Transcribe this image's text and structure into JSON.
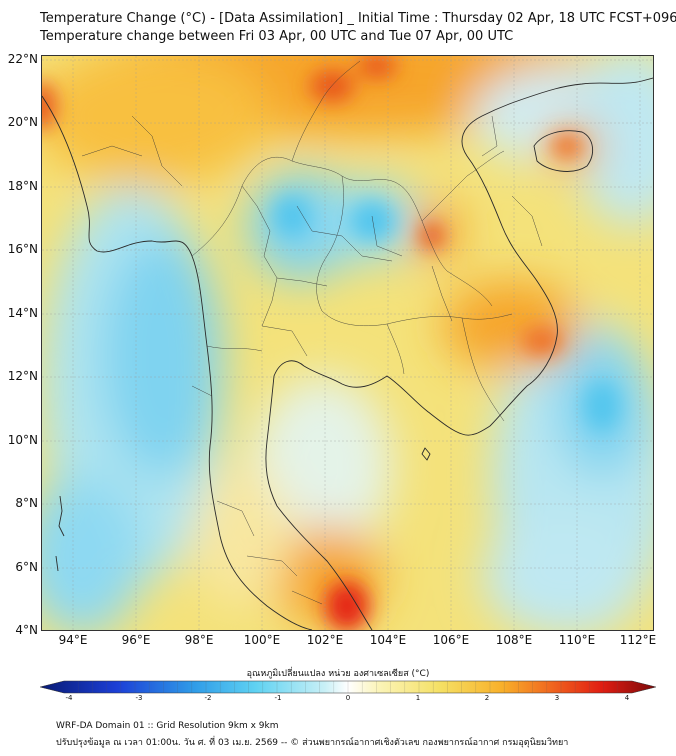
{
  "title": {
    "line1": "Temperature Change (°C) - [Data Assimilation] _ Initial Time : Thursday 02 Apr, 18 UTC FCST+096",
    "line2": "Temperature change between Fri 03 Apr, 00 UTC and Tue 07 Apr, 00 UTC"
  },
  "axes": {
    "lat_ticks": [
      "22°N",
      "20°N",
      "18°N",
      "16°N",
      "14°N",
      "12°N",
      "10°N",
      "8°N",
      "6°N",
      "4°N"
    ],
    "lon_ticks": [
      "94°E",
      "96°E",
      "98°E",
      "100°E",
      "102°E",
      "104°E",
      "106°E",
      "108°E",
      "110°E",
      "112°E"
    ],
    "lat_range": [
      4,
      22.2
    ],
    "lon_range": [
      93,
      112.5
    ]
  },
  "colorbar": {
    "title": "อุณหภูมิเปลี่ยนแปลง หน่วย องศาเซลเซียส (°C)",
    "range": [
      -4,
      4
    ],
    "tick_labels": [
      "-4",
      "-3",
      "-2",
      "-1",
      "0",
      "1",
      "2",
      "3",
      "4"
    ],
    "stops": [
      {
        "value": -4,
        "color": "#081a73"
      },
      {
        "value": -3,
        "color": "#1c3fd6"
      },
      {
        "value": -2,
        "color": "#2f9ce8"
      },
      {
        "value": -1.2,
        "color": "#5fd2f2"
      },
      {
        "value": -0.3,
        "color": "#c9f0f6"
      },
      {
        "value": 0,
        "color": "#ffffff"
      },
      {
        "value": 0.4,
        "color": "#fbf4b8"
      },
      {
        "value": 1.2,
        "color": "#f5e064"
      },
      {
        "value": 2,
        "color": "#f8b02a"
      },
      {
        "value": 2.7,
        "color": "#ef5f1e"
      },
      {
        "value": 3.3,
        "color": "#e01d12"
      },
      {
        "value": 4,
        "color": "#7a0a0a"
      }
    ]
  },
  "footer": {
    "line1": "WRF-DA Domain 01 :: Grid Resolution 9km x 9km",
    "line2": "ปรับปรุงข้อมูล ณ เวลา 01:00น. วัน ศ. ที่ 03 เม.ย. 2569 -- © ส่วนพยากรณ์อากาศเชิงตัวเลข กองพยากรณ์อากาศ กรมอุตุนิยมวิทยา"
  },
  "colors": {
    "warm_max": "#e52615",
    "warm": "#f6a52a",
    "mild": "#f4e27a",
    "neutral": "#fbf6d6",
    "cool": "#aee4f0",
    "cool_max": "#52c6ee",
    "border": "#333333"
  }
}
